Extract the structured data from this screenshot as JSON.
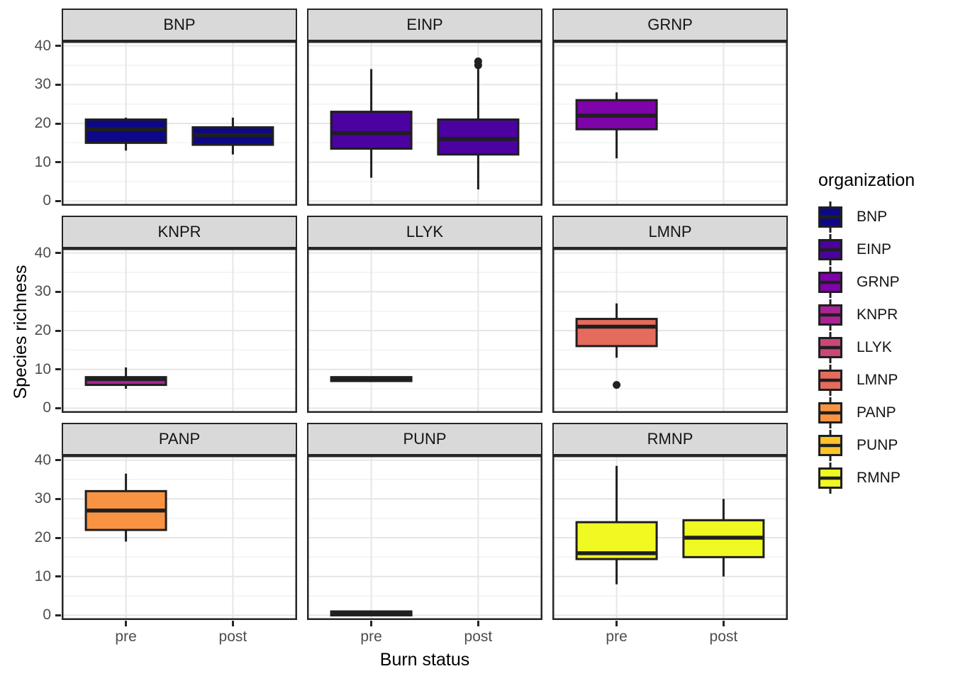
{
  "chart_data": {
    "type": "boxplot",
    "title": "",
    "xlabel": "Burn status",
    "ylabel": "Species richness",
    "faceted_by": "organization",
    "x_categories": [
      "pre",
      "post"
    ],
    "y_ticks": [
      0,
      10,
      20,
      30,
      40
    ],
    "ylim": [
      -1.2,
      41.2
    ],
    "grid": "major and minor horizontal, major vertical",
    "legend": {
      "title": "organization",
      "position": "right"
    },
    "style": {
      "strip_fill": "#D9D9D9",
      "panel_border": "#262626",
      "box_stroke": "#1F1F1F",
      "grid_major": "#E6E6E6",
      "grid_minor": "#F3F3F3",
      "tick_label_color": "#4D4D4D",
      "title_color": "#000000"
    },
    "facets": [
      {
        "label": "BNP",
        "color": "#0D0887",
        "boxes": [
          {
            "x": "pre",
            "whisker_low": 13,
            "q1": 15,
            "median": 18.5,
            "q3": 21,
            "whisker_high": 21.5,
            "outliers": []
          },
          {
            "x": "post",
            "whisker_low": 12,
            "q1": 14.5,
            "median": 17,
            "q3": 19,
            "whisker_high": 21.5,
            "outliers": []
          }
        ]
      },
      {
        "label": "EINP",
        "color": "#4C02A1",
        "boxes": [
          {
            "x": "pre",
            "whisker_low": 6,
            "q1": 13.5,
            "median": 17.5,
            "q3": 23,
            "whisker_high": 34,
            "outliers": []
          },
          {
            "x": "post",
            "whisker_low": 3,
            "q1": 12,
            "median": 16,
            "q3": 21,
            "whisker_high": 34,
            "outliers": [
              35,
              36
            ]
          }
        ]
      },
      {
        "label": "GRNP",
        "color": "#7E03A8",
        "boxes": [
          {
            "x": "pre",
            "whisker_low": 11,
            "q1": 18.5,
            "median": 22,
            "q3": 26,
            "whisker_high": 28,
            "outliers": []
          }
        ]
      },
      {
        "label": "KNPR",
        "color": "#AA2395",
        "boxes": [
          {
            "x": "pre",
            "whisker_low": 5,
            "q1": 6,
            "median": 7.5,
            "q3": 8,
            "whisker_high": 10.5,
            "outliers": []
          }
        ]
      },
      {
        "label": "LLYK",
        "color": "#CB4679",
        "boxes": [
          {
            "x": "pre",
            "whisker_low": 7,
            "q1": 7,
            "median": 7.5,
            "q3": 8,
            "whisker_high": 8,
            "outliers": []
          }
        ]
      },
      {
        "label": "LMNP",
        "color": "#E56B5D",
        "boxes": [
          {
            "x": "pre",
            "whisker_low": 13,
            "q1": 16,
            "median": 21,
            "q3": 23,
            "whisker_high": 27,
            "outliers": [
              6
            ]
          }
        ]
      },
      {
        "label": "PANP",
        "color": "#F89441",
        "boxes": [
          {
            "x": "pre",
            "whisker_low": 19,
            "q1": 22,
            "median": 27,
            "q3": 32,
            "whisker_high": 36.5,
            "outliers": []
          }
        ]
      },
      {
        "label": "PUNP",
        "color": "#FDC328",
        "boxes": [
          {
            "x": "pre",
            "whisker_low": 0,
            "q1": 0,
            "median": 0.5,
            "q3": 1,
            "whisker_high": 1,
            "outliers": []
          }
        ]
      },
      {
        "label": "RMNP",
        "color": "#F0F921",
        "boxes": [
          {
            "x": "pre",
            "whisker_low": 8,
            "q1": 14.5,
            "median": 16,
            "q3": 24,
            "whisker_high": 38.5,
            "outliers": []
          },
          {
            "x": "post",
            "whisker_low": 10,
            "q1": 15,
            "median": 20,
            "q3": 24.5,
            "whisker_high": 30,
            "outliers": []
          }
        ]
      }
    ]
  }
}
